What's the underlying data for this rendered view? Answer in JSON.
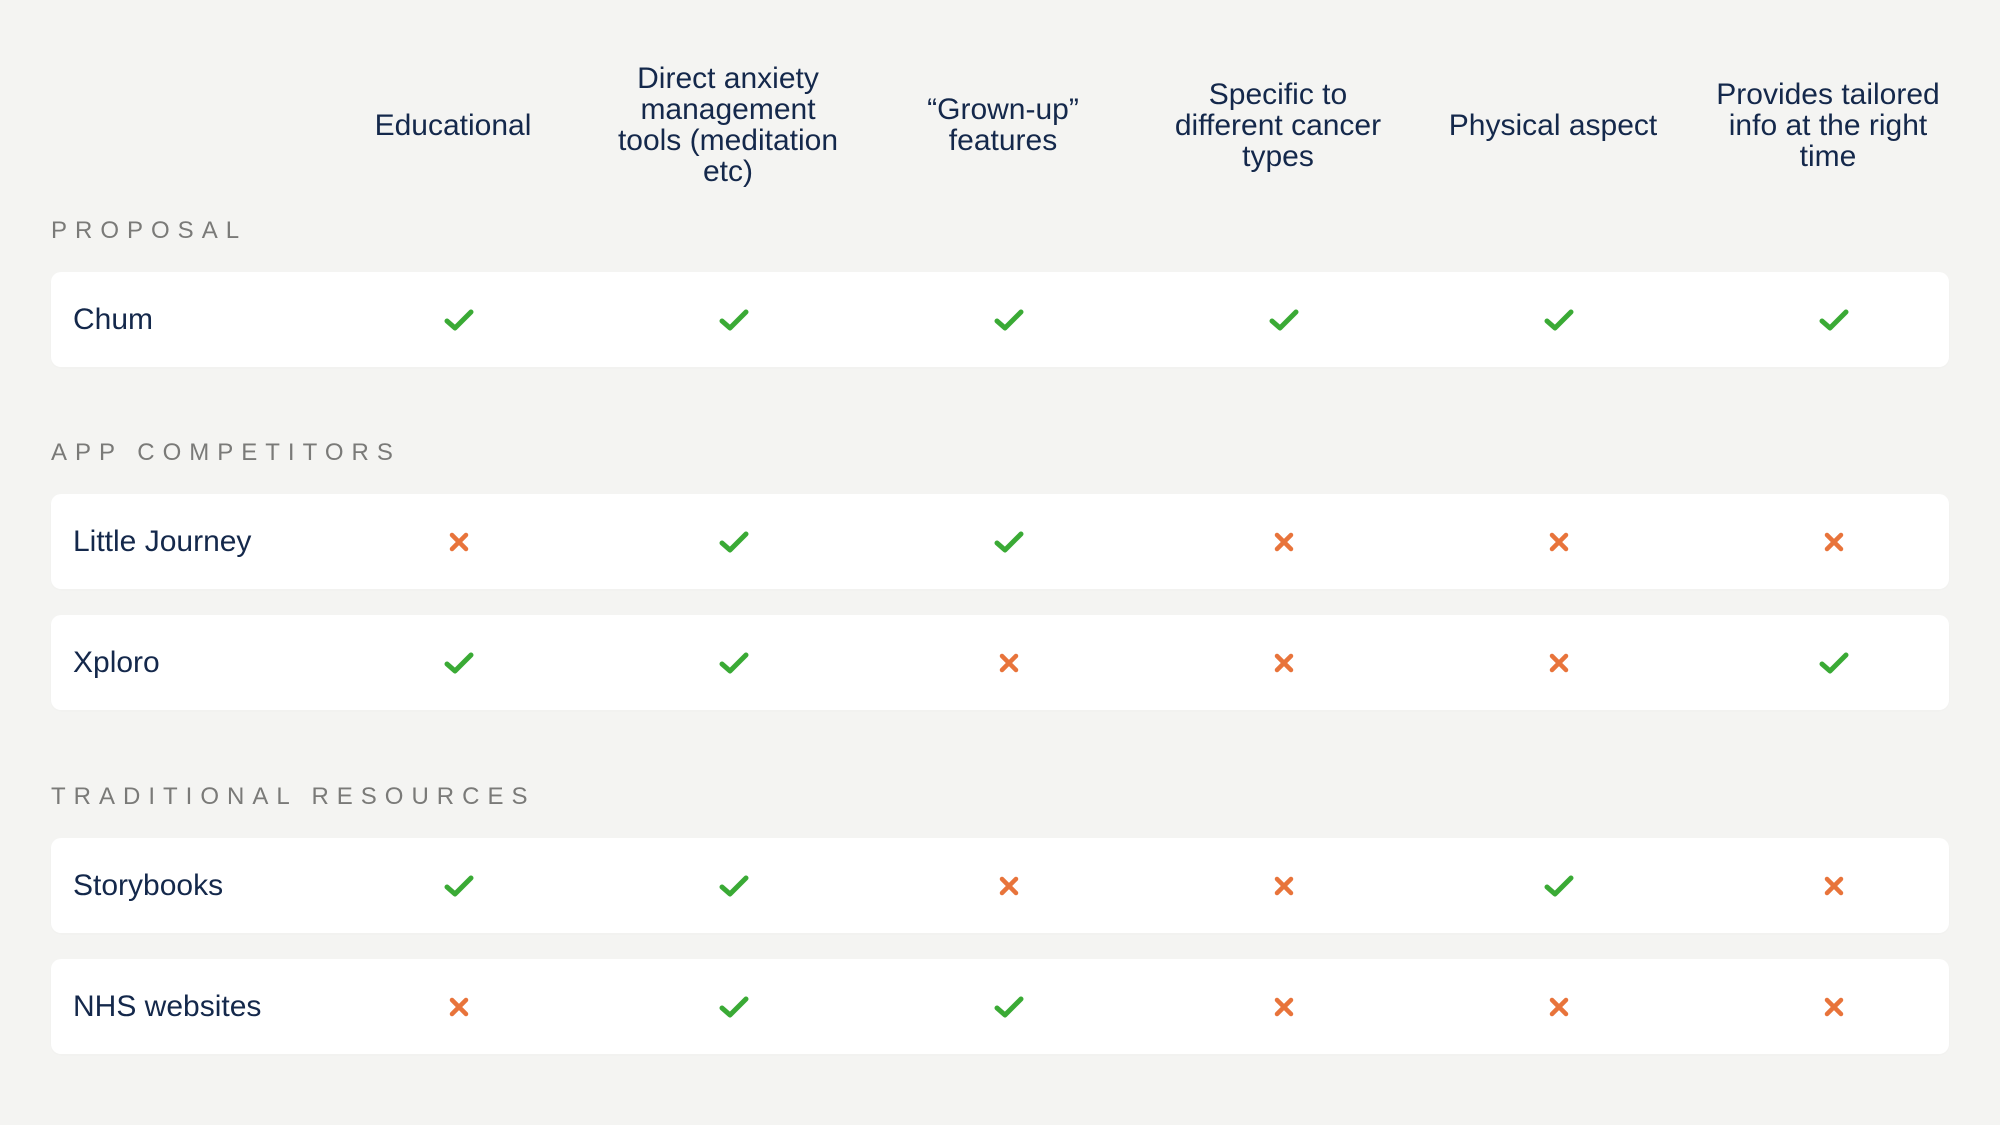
{
  "columns": [
    "Educational",
    "Direct anxiety management tools (meditation etc)",
    "“Grown-up” features",
    "Specific to different cancer types",
    "Physical aspect",
    "Provides tailored info at the right time"
  ],
  "sections": [
    {
      "label": "PROPOSAL",
      "rows": [
        {
          "name": "Chum",
          "values": [
            true,
            true,
            true,
            true,
            true,
            true
          ]
        }
      ]
    },
    {
      "label": "APP COMPETITORS",
      "rows": [
        {
          "name": "Little Journey",
          "values": [
            false,
            true,
            true,
            false,
            false,
            false
          ]
        },
        {
          "name": "Xploro",
          "values": [
            true,
            true,
            false,
            false,
            false,
            true
          ]
        }
      ]
    },
    {
      "label": "TRADITIONAL RESOURCES",
      "rows": [
        {
          "name": "Storybooks",
          "values": [
            true,
            true,
            false,
            false,
            true,
            false
          ]
        },
        {
          "name": "NHS websites",
          "values": [
            false,
            true,
            true,
            false,
            false,
            false
          ]
        }
      ]
    }
  ],
  "icons": {
    "yes": "check-icon",
    "no": "cross-icon"
  },
  "colors": {
    "background": "#f4f4f2",
    "text": "#14284b",
    "section_label": "#7a7a78",
    "check": "#3aaa35",
    "cross": "#e8743b"
  }
}
